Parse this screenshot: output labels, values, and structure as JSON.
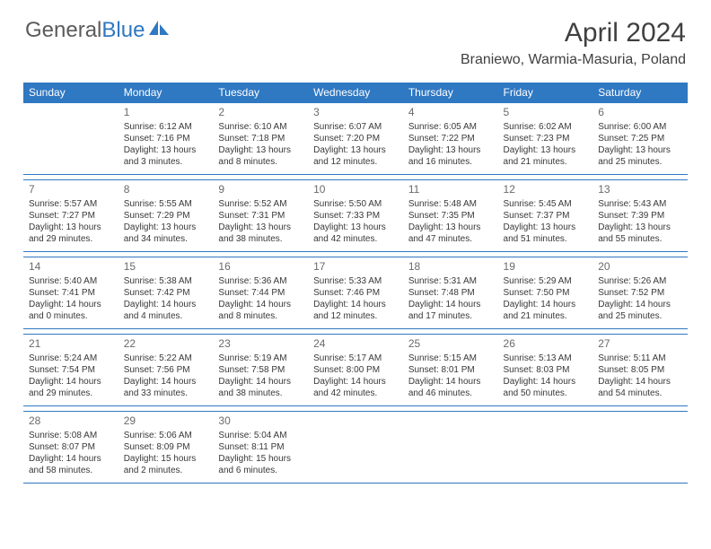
{
  "brand": {
    "part1": "General",
    "part2": "Blue"
  },
  "title": "April 2024",
  "location": "Braniewo, Warmia-Masuria, Poland",
  "colors": {
    "header_bg": "#2f78c2",
    "header_text": "#ffffff",
    "body_text": "#383838",
    "rule": "#2f78c2"
  },
  "weekdays": [
    "Sunday",
    "Monday",
    "Tuesday",
    "Wednesday",
    "Thursday",
    "Friday",
    "Saturday"
  ],
  "weeks": [
    [
      null,
      {
        "n": "1",
        "sr": "6:12 AM",
        "ss": "7:16 PM",
        "d1": "13 hours",
        "d2": "and 3 minutes."
      },
      {
        "n": "2",
        "sr": "6:10 AM",
        "ss": "7:18 PM",
        "d1": "13 hours",
        "d2": "and 8 minutes."
      },
      {
        "n": "3",
        "sr": "6:07 AM",
        "ss": "7:20 PM",
        "d1": "13 hours",
        "d2": "and 12 minutes."
      },
      {
        "n": "4",
        "sr": "6:05 AM",
        "ss": "7:22 PM",
        "d1": "13 hours",
        "d2": "and 16 minutes."
      },
      {
        "n": "5",
        "sr": "6:02 AM",
        "ss": "7:23 PM",
        "d1": "13 hours",
        "d2": "and 21 minutes."
      },
      {
        "n": "6",
        "sr": "6:00 AM",
        "ss": "7:25 PM",
        "d1": "13 hours",
        "d2": "and 25 minutes."
      }
    ],
    [
      {
        "n": "7",
        "sr": "5:57 AM",
        "ss": "7:27 PM",
        "d1": "13 hours",
        "d2": "and 29 minutes."
      },
      {
        "n": "8",
        "sr": "5:55 AM",
        "ss": "7:29 PM",
        "d1": "13 hours",
        "d2": "and 34 minutes."
      },
      {
        "n": "9",
        "sr": "5:52 AM",
        "ss": "7:31 PM",
        "d1": "13 hours",
        "d2": "and 38 minutes."
      },
      {
        "n": "10",
        "sr": "5:50 AM",
        "ss": "7:33 PM",
        "d1": "13 hours",
        "d2": "and 42 minutes."
      },
      {
        "n": "11",
        "sr": "5:48 AM",
        "ss": "7:35 PM",
        "d1": "13 hours",
        "d2": "and 47 minutes."
      },
      {
        "n": "12",
        "sr": "5:45 AM",
        "ss": "7:37 PM",
        "d1": "13 hours",
        "d2": "and 51 minutes."
      },
      {
        "n": "13",
        "sr": "5:43 AM",
        "ss": "7:39 PM",
        "d1": "13 hours",
        "d2": "and 55 minutes."
      }
    ],
    [
      {
        "n": "14",
        "sr": "5:40 AM",
        "ss": "7:41 PM",
        "d1": "14 hours",
        "d2": "and 0 minutes."
      },
      {
        "n": "15",
        "sr": "5:38 AM",
        "ss": "7:42 PM",
        "d1": "14 hours",
        "d2": "and 4 minutes."
      },
      {
        "n": "16",
        "sr": "5:36 AM",
        "ss": "7:44 PM",
        "d1": "14 hours",
        "d2": "and 8 minutes."
      },
      {
        "n": "17",
        "sr": "5:33 AM",
        "ss": "7:46 PM",
        "d1": "14 hours",
        "d2": "and 12 minutes."
      },
      {
        "n": "18",
        "sr": "5:31 AM",
        "ss": "7:48 PM",
        "d1": "14 hours",
        "d2": "and 17 minutes."
      },
      {
        "n": "19",
        "sr": "5:29 AM",
        "ss": "7:50 PM",
        "d1": "14 hours",
        "d2": "and 21 minutes."
      },
      {
        "n": "20",
        "sr": "5:26 AM",
        "ss": "7:52 PM",
        "d1": "14 hours",
        "d2": "and 25 minutes."
      }
    ],
    [
      {
        "n": "21",
        "sr": "5:24 AM",
        "ss": "7:54 PM",
        "d1": "14 hours",
        "d2": "and 29 minutes."
      },
      {
        "n": "22",
        "sr": "5:22 AM",
        "ss": "7:56 PM",
        "d1": "14 hours",
        "d2": "and 33 minutes."
      },
      {
        "n": "23",
        "sr": "5:19 AM",
        "ss": "7:58 PM",
        "d1": "14 hours",
        "d2": "and 38 minutes."
      },
      {
        "n": "24",
        "sr": "5:17 AM",
        "ss": "8:00 PM",
        "d1": "14 hours",
        "d2": "and 42 minutes."
      },
      {
        "n": "25",
        "sr": "5:15 AM",
        "ss": "8:01 PM",
        "d1": "14 hours",
        "d2": "and 46 minutes."
      },
      {
        "n": "26",
        "sr": "5:13 AM",
        "ss": "8:03 PM",
        "d1": "14 hours",
        "d2": "and 50 minutes."
      },
      {
        "n": "27",
        "sr": "5:11 AM",
        "ss": "8:05 PM",
        "d1": "14 hours",
        "d2": "and 54 minutes."
      }
    ],
    [
      {
        "n": "28",
        "sr": "5:08 AM",
        "ss": "8:07 PM",
        "d1": "14 hours",
        "d2": "and 58 minutes."
      },
      {
        "n": "29",
        "sr": "5:06 AM",
        "ss": "8:09 PM",
        "d1": "15 hours",
        "d2": "and 2 minutes."
      },
      {
        "n": "30",
        "sr": "5:04 AM",
        "ss": "8:11 PM",
        "d1": "15 hours",
        "d2": "and 6 minutes."
      },
      null,
      null,
      null,
      null
    ]
  ],
  "labels": {
    "sunrise": "Sunrise:",
    "sunset": "Sunset:",
    "daylight": "Daylight:"
  }
}
